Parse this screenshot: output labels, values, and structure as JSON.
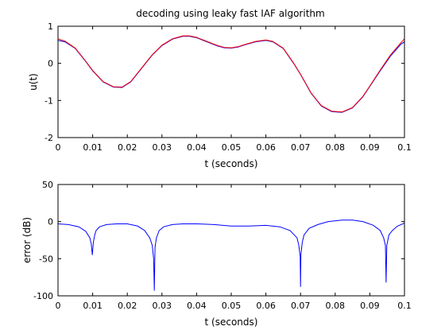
{
  "chart_data": [
    {
      "type": "line",
      "title": "decoding using leaky fast IAF algorithm",
      "xlabel": "t (seconds)",
      "ylabel": "u(t)",
      "xlim": [
        0,
        0.1
      ],
      "ylim": [
        -2,
        1
      ],
      "xticks": [
        0,
        0.01,
        0.02,
        0.03,
        0.04,
        0.05,
        0.06,
        0.07,
        0.08,
        0.09,
        0.1
      ],
      "xtick_labels": [
        "0",
        "0.01",
        "0.02",
        "0.03",
        "0.04",
        "0.05",
        "0.06",
        "0.07",
        "0.08",
        "0.09",
        "0.1"
      ],
      "yticks": [
        -2,
        -1,
        0,
        1
      ],
      "ytick_labels": [
        "-2",
        "-1",
        "0",
        "1"
      ],
      "grid": false,
      "series": [
        {
          "color": "#0000ff",
          "x": [
            0,
            0.002,
            0.005,
            0.008,
            0.01,
            0.013,
            0.016,
            0.0185,
            0.021,
            0.024,
            0.027,
            0.03,
            0.033,
            0.036,
            0.038,
            0.04,
            0.043,
            0.046,
            0.048,
            0.05,
            0.052,
            0.054,
            0.057,
            0.06,
            0.062,
            0.065,
            0.068,
            0.07,
            0.073,
            0.076,
            0.079,
            0.082,
            0.085,
            0.088,
            0.09,
            0.093,
            0.096,
            0.099,
            0.1
          ],
          "y": [
            0.62,
            0.58,
            0.4,
            0.05,
            -0.2,
            -0.5,
            -0.64,
            -0.65,
            -0.5,
            -0.15,
            0.2,
            0.48,
            0.65,
            0.73,
            0.73,
            0.69,
            0.58,
            0.47,
            0.42,
            0.41,
            0.44,
            0.5,
            0.58,
            0.62,
            0.58,
            0.4,
            0.0,
            -0.3,
            -0.8,
            -1.15,
            -1.3,
            -1.32,
            -1.2,
            -0.9,
            -0.62,
            -0.2,
            0.2,
            0.52,
            0.58
          ]
        },
        {
          "color": "#ff0000",
          "x": [
            0,
            0.002,
            0.005,
            0.008,
            0.01,
            0.013,
            0.016,
            0.0185,
            0.021,
            0.024,
            0.027,
            0.03,
            0.033,
            0.036,
            0.038,
            0.04,
            0.043,
            0.046,
            0.048,
            0.05,
            0.052,
            0.054,
            0.057,
            0.06,
            0.062,
            0.065,
            0.068,
            0.07,
            0.073,
            0.076,
            0.079,
            0.082,
            0.085,
            0.088,
            0.09,
            0.093,
            0.096,
            0.099,
            0.1
          ],
          "y": [
            0.66,
            0.6,
            0.41,
            0.06,
            -0.19,
            -0.49,
            -0.63,
            -0.64,
            -0.49,
            -0.14,
            0.21,
            0.49,
            0.66,
            0.74,
            0.74,
            0.7,
            0.59,
            0.48,
            0.43,
            0.42,
            0.45,
            0.51,
            0.59,
            0.63,
            0.59,
            0.41,
            0.01,
            -0.29,
            -0.79,
            -1.14,
            -1.29,
            -1.31,
            -1.19,
            -0.89,
            -0.61,
            -0.18,
            0.23,
            0.56,
            0.66
          ]
        }
      ]
    },
    {
      "type": "line",
      "title": "",
      "xlabel": "t (seconds)",
      "ylabel": "error (dB)",
      "xlim": [
        0,
        0.1
      ],
      "ylim": [
        -100,
        50
      ],
      "xticks": [
        0,
        0.01,
        0.02,
        0.03,
        0.04,
        0.05,
        0.06,
        0.07,
        0.08,
        0.09,
        0.1
      ],
      "xtick_labels": [
        "0",
        "0.01",
        "0.02",
        "0.03",
        "0.04",
        "0.05",
        "0.06",
        "0.07",
        "0.08",
        "0.09",
        "0.1"
      ],
      "yticks": [
        -100,
        -50,
        0,
        50
      ],
      "ytick_labels": [
        "-100",
        "-50",
        "0",
        "50"
      ],
      "grid": false,
      "series": [
        {
          "color": "#0000ff",
          "x": [
            0,
            0.003,
            0.006,
            0.008,
            0.0092,
            0.0096,
            0.0099,
            0.0102,
            0.0106,
            0.011,
            0.012,
            0.014,
            0.017,
            0.02,
            0.023,
            0.025,
            0.0265,
            0.0272,
            0.0276,
            0.0278,
            0.028,
            0.0284,
            0.0292,
            0.0305,
            0.033,
            0.036,
            0.04,
            0.045,
            0.05,
            0.055,
            0.06,
            0.064,
            0.067,
            0.069,
            0.0695,
            0.0699,
            0.07,
            0.0701,
            0.0705,
            0.071,
            0.0725,
            0.075,
            0.078,
            0.082,
            0.085,
            0.088,
            0.091,
            0.093,
            0.094,
            0.0945,
            0.0947,
            0.0949,
            0.0955,
            0.0965,
            0.098,
            0.1
          ],
          "y": [
            -3,
            -4,
            -7,
            -13,
            -22,
            -30,
            -45,
            -28,
            -18,
            -12,
            -7,
            -4,
            -3,
            -3,
            -6,
            -12,
            -22,
            -32,
            -50,
            -93,
            -35,
            -22,
            -12,
            -7,
            -4,
            -3,
            -3,
            -4,
            -6,
            -6,
            -5,
            -7,
            -12,
            -22,
            -32,
            -47,
            -88,
            -45,
            -28,
            -18,
            -9,
            -4,
            0,
            2,
            2,
            0,
            -5,
            -12,
            -22,
            -32,
            -82,
            -32,
            -18,
            -12,
            -6,
            -2
          ]
        }
      ]
    }
  ]
}
